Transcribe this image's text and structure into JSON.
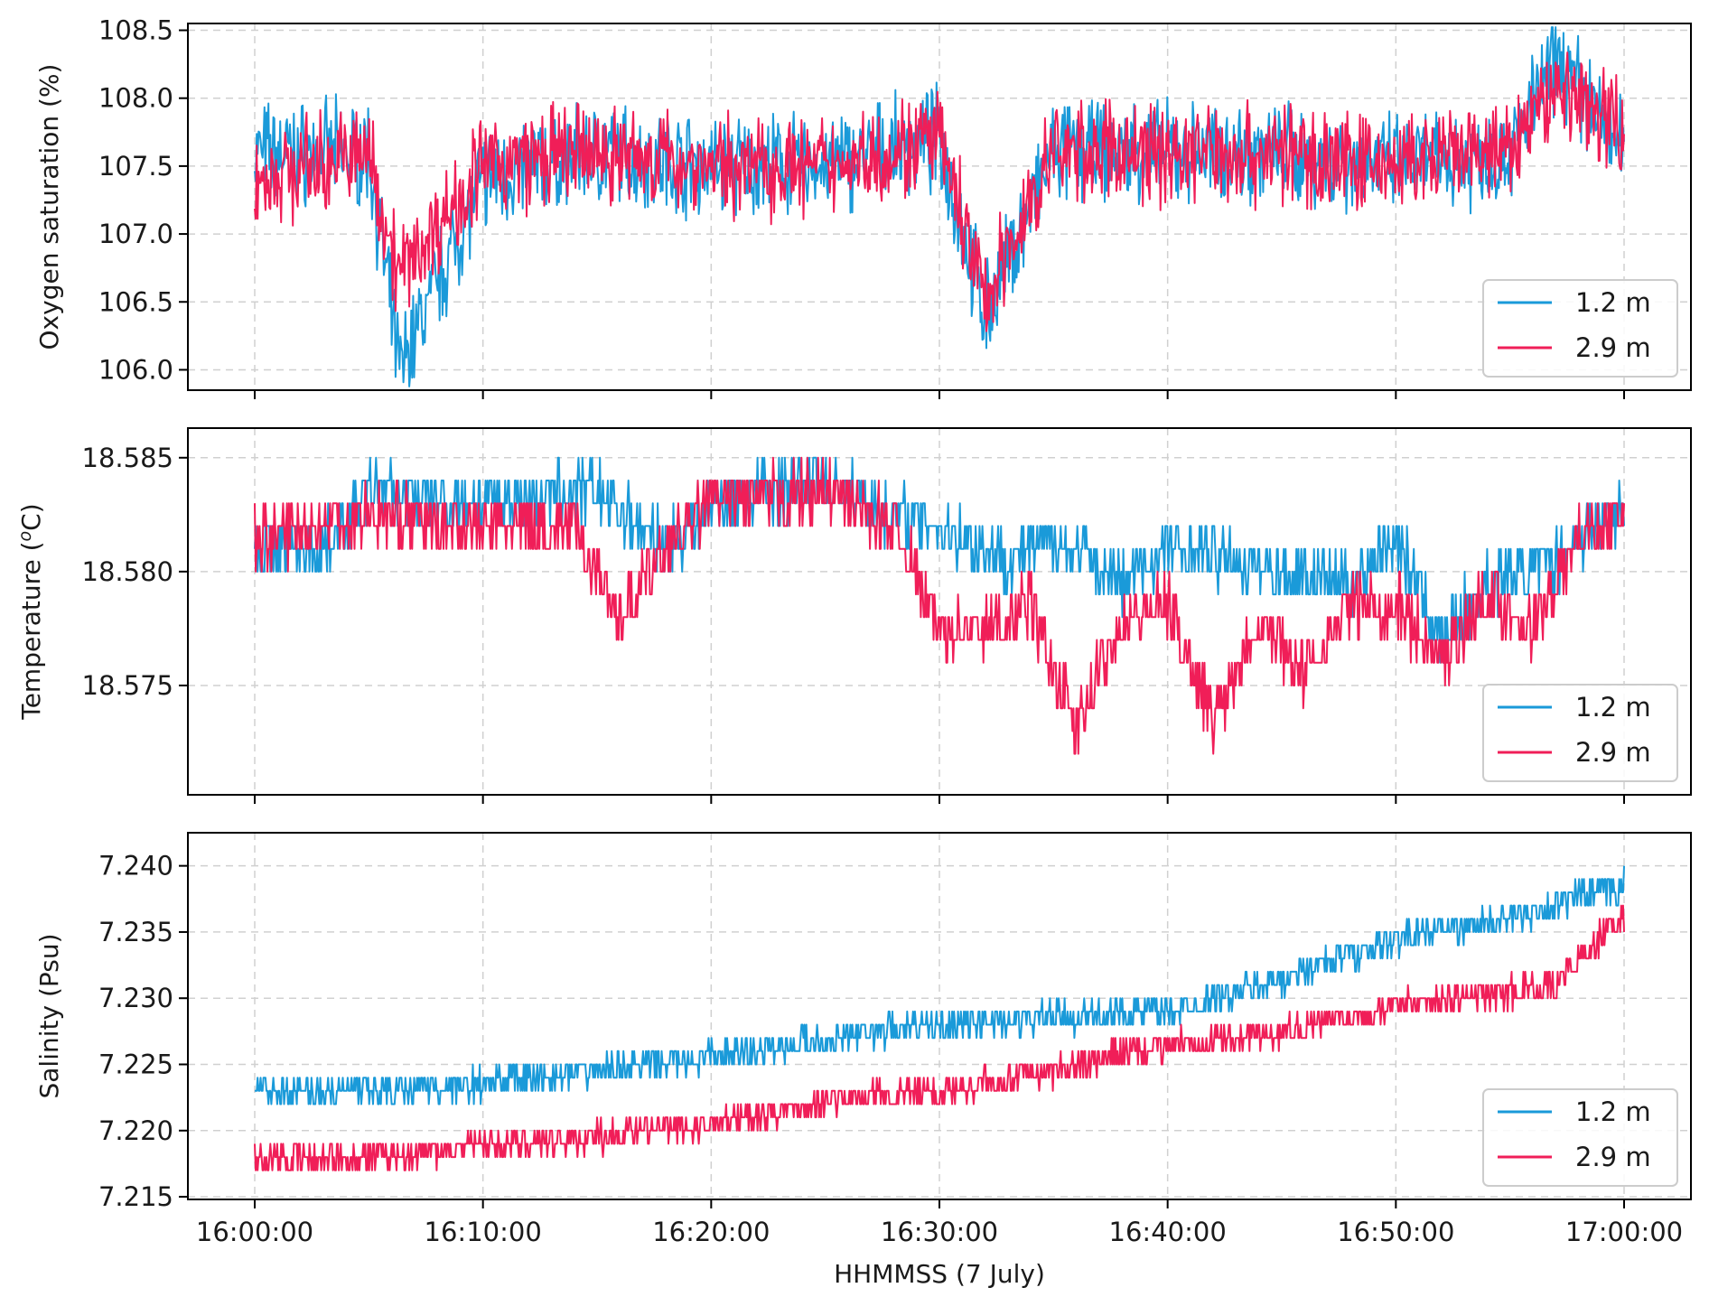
{
  "colors": {
    "series_1": "#1a9ad9",
    "series_2": "#f01e58",
    "grid": "#d0d0d0"
  },
  "chart_data": [
    {
      "type": "line",
      "ylabel": "Oxygen saturation (%)",
      "ylim": [
        105.85,
        108.55
      ],
      "yticks": [
        106.0,
        106.5,
        107.0,
        107.5,
        108.0,
        108.5
      ],
      "ytick_labels": [
        "106.0",
        "106.5",
        "107.0",
        "107.5",
        "108.0",
        "108.5"
      ],
      "grid": true,
      "legend": "lower-right",
      "series": [
        {
          "name": "1.2 m",
          "x": [
            "16:00:00",
            "16:05:00",
            "16:06:20",
            "16:10:00",
            "16:15:00",
            "16:20:00",
            "16:25:00",
            "16:30:00",
            "16:32:00",
            "16:35:00",
            "16:40:00",
            "16:45:00",
            "16:50:00",
            "16:55:00",
            "16:57:00",
            "17:00:00"
          ],
          "values": [
            107.6,
            107.6,
            106.0,
            107.4,
            107.6,
            107.5,
            107.5,
            107.7,
            106.4,
            107.6,
            107.6,
            107.6,
            107.5,
            107.6,
            108.3,
            107.6
          ]
        },
        {
          "name": "2.9 m",
          "x": [
            "16:00:00",
            "16:05:00",
            "16:06:20",
            "16:10:00",
            "16:15:00",
            "16:20:00",
            "16:25:00",
            "16:30:00",
            "16:32:00",
            "16:35:00",
            "16:40:00",
            "16:45:00",
            "16:50:00",
            "16:55:00",
            "16:57:00",
            "17:00:00"
          ],
          "values": [
            107.4,
            107.6,
            106.7,
            107.5,
            107.6,
            107.5,
            107.5,
            107.7,
            106.5,
            107.6,
            107.6,
            107.6,
            107.5,
            107.6,
            108.1,
            107.8
          ]
        }
      ]
    },
    {
      "type": "line",
      "ylabel": "Temperature (",
      "ylabel_superscript": "o",
      "ylabel_suffix": "C)",
      "ylim": [
        18.5702,
        18.5863
      ],
      "yticks": [
        18.575,
        18.58,
        18.585
      ],
      "ytick_labels": [
        "18.575",
        "18.580",
        "18.585"
      ],
      "grid": true,
      "legend": "lower-right",
      "series": [
        {
          "name": "1.2 m",
          "x": [
            "16:00:00",
            "16:03:00",
            "16:05:00",
            "16:10:00",
            "16:15:00",
            "16:18:00",
            "16:20:00",
            "16:25:00",
            "16:28:00",
            "16:30:00",
            "16:33:00",
            "16:35:00",
            "16:38:00",
            "16:40:00",
            "16:43:00",
            "16:45:00",
            "16:48:00",
            "16:50:00",
            "16:52:00",
            "16:54:00",
            "16:57:00",
            "17:00:00"
          ],
          "values": [
            18.581,
            18.581,
            18.5835,
            18.583,
            18.5835,
            18.581,
            18.583,
            18.584,
            18.5825,
            18.582,
            18.5805,
            18.5815,
            18.5795,
            18.581,
            18.5805,
            18.58,
            18.5795,
            18.5815,
            18.577,
            18.5795,
            18.5805,
            18.583
          ]
        },
        {
          "name": "2.9 m",
          "x": [
            "16:00:00",
            "16:03:00",
            "16:05:00",
            "16:10:00",
            "16:14:00",
            "16:16:00",
            "16:18:00",
            "16:20:00",
            "16:25:00",
            "16:28:00",
            "16:30:00",
            "16:32:00",
            "16:34:00",
            "16:36:00",
            "16:38:00",
            "16:40:00",
            "16:42:00",
            "16:44:00",
            "16:46:00",
            "16:48:00",
            "16:50:00",
            "16:52:00",
            "16:54:00",
            "16:56:00",
            "16:58:00",
            "17:00:00"
          ],
          "values": [
            18.5815,
            18.582,
            18.5825,
            18.582,
            18.582,
            18.578,
            18.581,
            18.583,
            18.5835,
            18.582,
            18.5775,
            18.5775,
            18.5785,
            18.573,
            18.578,
            18.5785,
            18.5735,
            18.578,
            18.5755,
            18.5785,
            18.5785,
            18.576,
            18.579,
            18.5775,
            18.5815,
            18.5825
          ]
        }
      ]
    },
    {
      "type": "line",
      "ylabel": "Salinity (Psu)",
      "xlabel": "HHMMSS (7 July)",
      "ylim": [
        7.2148,
        7.2425
      ],
      "yticks": [
        7.215,
        7.22,
        7.225,
        7.23,
        7.235,
        7.24
      ],
      "ytick_labels": [
        "7.215",
        "7.220",
        "7.225",
        "7.230",
        "7.235",
        "7.240"
      ],
      "xticks": [
        "16:00:00",
        "16:10:00",
        "16:20:00",
        "16:30:00",
        "16:40:00",
        "16:50:00",
        "17:00:00"
      ],
      "grid": true,
      "legend": "lower-right",
      "series": [
        {
          "name": "1.2 m",
          "x": [
            "16:00:00",
            "16:05:00",
            "16:10:00",
            "16:15:00",
            "16:20:00",
            "16:25:00",
            "16:30:00",
            "16:35:00",
            "16:40:00",
            "16:45:00",
            "16:50:00",
            "16:55:00",
            "17:00:00"
          ],
          "values": [
            7.223,
            7.223,
            7.2235,
            7.2245,
            7.2255,
            7.227,
            7.228,
            7.2285,
            7.229,
            7.2315,
            7.2345,
            7.236,
            7.2385
          ]
        },
        {
          "name": "2.9 m",
          "x": [
            "16:00:00",
            "16:05:00",
            "16:10:00",
            "16:15:00",
            "16:20:00",
            "16:25:00",
            "16:30:00",
            "16:35:00",
            "16:40:00",
            "16:45:00",
            "16:50:00",
            "16:55:00",
            "16:57:00",
            "17:00:00"
          ],
          "values": [
            7.2178,
            7.218,
            7.219,
            7.2195,
            7.2205,
            7.2222,
            7.223,
            7.2245,
            7.2265,
            7.2275,
            7.2295,
            7.2305,
            7.231,
            7.2365
          ]
        }
      ]
    }
  ]
}
